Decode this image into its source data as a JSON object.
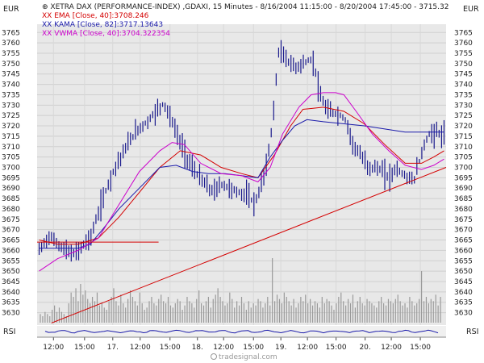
{
  "chart_data": {
    "type": "line",
    "style": "bar-ohlc",
    "currency_label": "EUR",
    "title": "XETRA DAX (PERFORMANCE-INDEX) ,GDAXI, 15 Minutes - 8/16/2004 11:15:00 - 8/20/2004 17:45:00 - 3715.32",
    "legend": [
      {
        "marker": "XX",
        "text": "EMA [Close, 40]:3708.246",
        "color": "#d40000"
      },
      {
        "marker": "XX",
        "text": "KAMA [Close, 82]:3717.13643",
        "color": "#1a1aaa"
      },
      {
        "marker": "XX",
        "text": "VWMA [Close, 40]:3704.322354",
        "color": "#cc00cc"
      }
    ],
    "ylim": [
      3624,
      3769
    ],
    "yticks": [
      3630,
      3635,
      3640,
      3645,
      3650,
      3655,
      3660,
      3665,
      3670,
      3675,
      3680,
      3685,
      3690,
      3695,
      3700,
      3705,
      3710,
      3715,
      3720,
      3725,
      3730,
      3735,
      3740,
      3745,
      3750,
      3755,
      3760,
      3765
    ],
    "x_range": [
      0,
      100
    ],
    "x_ticks": [
      {
        "x": 4,
        "label": "12:00"
      },
      {
        "x": 11.6,
        "label": "15:00"
      },
      {
        "x": 18.5,
        "label": "17."
      },
      {
        "x": 25.2,
        "label": "12:00"
      },
      {
        "x": 32.5,
        "label": "15:00"
      },
      {
        "x": 39.2,
        "label": "18."
      },
      {
        "x": 45.6,
        "label": "12:00"
      },
      {
        "x": 52.9,
        "label": "15:00"
      },
      {
        "x": 59.6,
        "label": "19."
      },
      {
        "x": 66.1,
        "label": "12:00"
      },
      {
        "x": 73.1,
        "label": "15:00"
      },
      {
        "x": 80.2,
        "label": "20."
      },
      {
        "x": 86.6,
        "label": "12:00"
      },
      {
        "x": 93.7,
        "label": "15:00"
      }
    ],
    "rsi_label": "RSI",
    "grid": true,
    "watermark": "tradesignal.com",
    "support_line": {
      "from": [
        3.5,
        3625
      ],
      "to": [
        100,
        3700
      ],
      "color": "#d40000"
    },
    "horizontal_line": {
      "from": [
        0,
        3664
      ],
      "to": [
        29.7,
        3664
      ],
      "color": "#d40000"
    },
    "price_points": [
      [
        0.5,
        3660
      ],
      [
        3,
        3667
      ],
      [
        5,
        3663
      ],
      [
        7,
        3660
      ],
      [
        9,
        3658
      ],
      [
        11,
        3662
      ],
      [
        13,
        3666
      ],
      [
        15,
        3678
      ],
      [
        17,
        3690
      ],
      [
        19,
        3700
      ],
      [
        21,
        3707
      ],
      [
        23,
        3714
      ],
      [
        25,
        3719
      ],
      [
        27,
        3722
      ],
      [
        29,
        3727
      ],
      [
        31,
        3731
      ],
      [
        33,
        3722
      ],
      [
        35,
        3712
      ],
      [
        37,
        3703
      ],
      [
        39,
        3697
      ],
      [
        41,
        3692
      ],
      [
        43,
        3688
      ],
      [
        45,
        3692
      ],
      [
        47,
        3690
      ],
      [
        49,
        3688
      ],
      [
        51,
        3687
      ],
      [
        53,
        3683
      ],
      [
        54,
        3686
      ],
      [
        56,
        3700
      ],
      [
        57,
        3713
      ],
      [
        58,
        3730
      ],
      [
        59,
        3756
      ],
      [
        61,
        3752
      ],
      [
        63,
        3748
      ],
      [
        65,
        3750
      ],
      [
        67,
        3752
      ],
      [
        68,
        3748
      ],
      [
        69,
        3735
      ],
      [
        71,
        3727
      ],
      [
        73,
        3726
      ],
      [
        75,
        3724
      ],
      [
        76,
        3720
      ],
      [
        77,
        3712
      ],
      [
        79,
        3706
      ],
      [
        81,
        3700
      ],
      [
        83,
        3700
      ],
      [
        85,
        3697
      ],
      [
        86,
        3695
      ],
      [
        88,
        3700
      ],
      [
        89,
        3697
      ],
      [
        91,
        3695
      ],
      [
        92,
        3693
      ],
      [
        93,
        3700
      ],
      [
        95,
        3713
      ],
      [
        96,
        3716
      ],
      [
        98,
        3717
      ],
      [
        99,
        3715
      ]
    ],
    "ema_points": [
      [
        0.5,
        3665
      ],
      [
        5,
        3663
      ],
      [
        10,
        3663
      ],
      [
        15,
        3666
      ],
      [
        20,
        3676
      ],
      [
        25,
        3688
      ],
      [
        30,
        3700
      ],
      [
        35,
        3708
      ],
      [
        40,
        3706
      ],
      [
        45,
        3700
      ],
      [
        50,
        3697
      ],
      [
        54,
        3695
      ],
      [
        58,
        3706
      ],
      [
        62,
        3720
      ],
      [
        65,
        3728
      ],
      [
        70,
        3729
      ],
      [
        75,
        3727
      ],
      [
        80,
        3721
      ],
      [
        85,
        3711
      ],
      [
        90,
        3702
      ],
      [
        94,
        3702
      ],
      [
        97,
        3705
      ],
      [
        99.5,
        3708
      ]
    ],
    "kama_points": [
      [
        0.5,
        3661
      ],
      [
        5,
        3661
      ],
      [
        10,
        3661
      ],
      [
        13,
        3663
      ],
      [
        16,
        3670
      ],
      [
        20,
        3680
      ],
      [
        25,
        3690
      ],
      [
        30,
        3700
      ],
      [
        34,
        3701
      ],
      [
        38,
        3698
      ],
      [
        42,
        3697
      ],
      [
        46,
        3697
      ],
      [
        50,
        3696
      ],
      [
        54,
        3695
      ],
      [
        57,
        3705
      ],
      [
        60,
        3713
      ],
      [
        63,
        3720
      ],
      [
        66,
        3723
      ],
      [
        70,
        3722
      ],
      [
        80,
        3720
      ],
      [
        90,
        3717
      ],
      [
        99.5,
        3717
      ]
    ],
    "vwma_points": [
      [
        0.5,
        3650
      ],
      [
        5,
        3656
      ],
      [
        10,
        3660
      ],
      [
        15,
        3666
      ],
      [
        20,
        3682
      ],
      [
        25,
        3698
      ],
      [
        30,
        3708
      ],
      [
        33,
        3712
      ],
      [
        36,
        3711
      ],
      [
        40,
        3702
      ],
      [
        45,
        3697
      ],
      [
        50,
        3696
      ],
      [
        54,
        3693
      ],
      [
        57,
        3700
      ],
      [
        60,
        3716
      ],
      [
        64,
        3729
      ],
      [
        67,
        3735
      ],
      [
        70,
        3736
      ],
      [
        73,
        3736
      ],
      [
        75,
        3735
      ],
      [
        78,
        3727
      ],
      [
        82,
        3716
      ],
      [
        86,
        3708
      ],
      [
        90,
        3701
      ],
      [
        94,
        3699
      ],
      [
        97,
        3701
      ],
      [
        99.5,
        3704
      ]
    ],
    "volume": [
      4,
      3,
      5,
      4,
      3,
      6,
      8,
      5,
      7,
      5,
      4,
      3,
      9,
      14,
      12,
      16,
      10,
      18,
      13,
      15,
      11,
      9,
      12,
      10,
      14,
      8,
      9,
      7,
      6,
      10,
      12,
      16,
      10,
      8,
      13,
      9,
      7,
      11,
      15,
      12,
      10,
      8,
      14,
      9,
      6,
      7,
      10,
      12,
      9,
      8,
      11,
      13,
      10,
      9,
      12,
      8,
      7,
      9,
      11,
      10,
      6,
      8,
      12,
      10,
      9,
      7,
      11,
      15,
      9,
      8,
      10,
      12,
      7,
      11,
      13,
      16,
      12,
      10,
      8,
      9,
      14,
      11,
      7,
      10,
      8,
      12,
      9,
      6,
      10,
      7,
      9,
      8,
      11,
      10,
      7,
      9,
      12,
      8,
      30,
      10,
      13,
      11,
      9,
      14,
      12,
      10,
      8,
      11,
      7,
      9,
      12,
      10,
      13,
      9,
      11,
      8,
      10,
      9,
      7,
      12,
      9,
      11,
      10,
      8,
      6,
      9,
      12,
      14,
      10,
      8,
      11,
      9,
      13,
      7,
      10,
      12,
      9,
      8,
      11,
      10,
      9,
      8,
      7,
      10,
      12,
      9,
      8,
      11,
      10,
      9,
      11,
      13,
      10,
      8,
      9,
      7,
      12,
      10,
      8,
      9,
      11,
      24,
      10,
      12,
      9,
      11,
      10,
      13,
      8,
      12
    ]
  }
}
